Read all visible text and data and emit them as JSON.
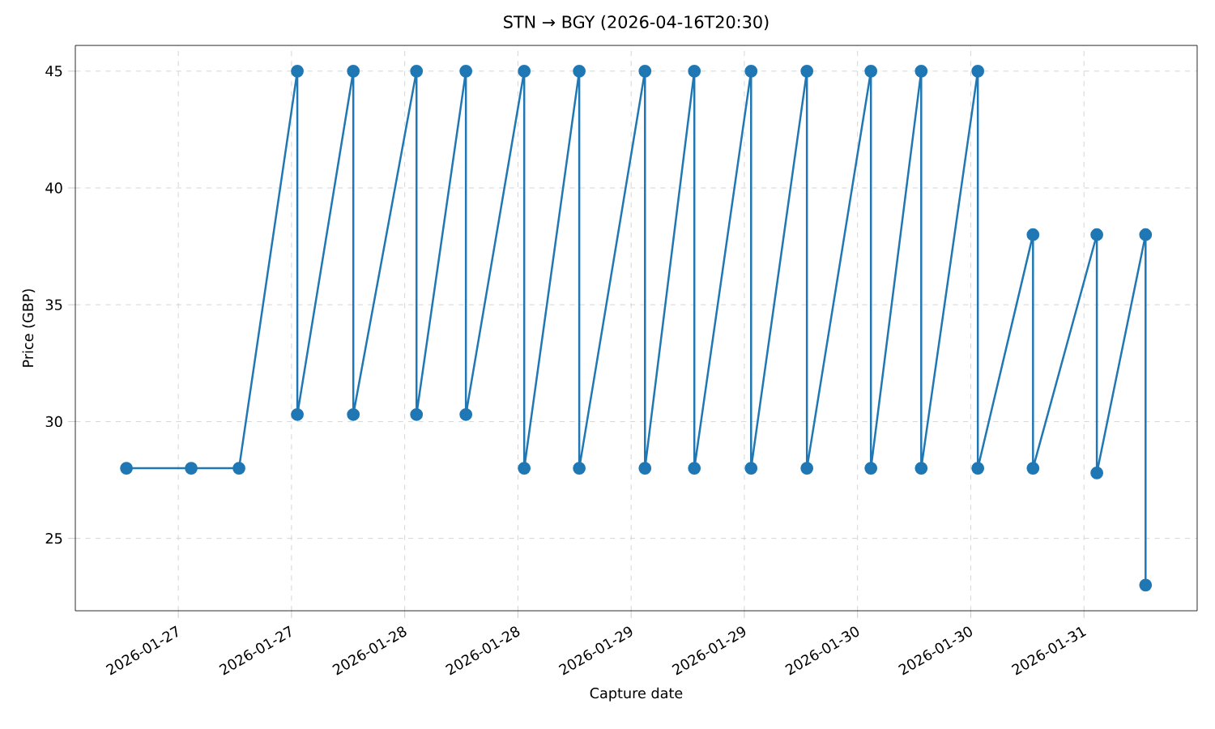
{
  "chart_data": {
    "type": "line",
    "title": "STN → BGY (2026-04-16T20:30)",
    "xlabel": "Capture date",
    "ylabel": "Price (GBP)",
    "x": [
      "2026-01-26T18:30",
      "2026-01-27T01:22",
      "2026-01-27T06:26",
      "2026-01-27T12:37",
      "2026-01-27T12:37",
      "2026-01-27T18:33",
      "2026-01-27T18:33",
      "2026-01-28T01:15",
      "2026-01-28T01:15",
      "2026-01-28T06:29",
      "2026-01-28T06:29",
      "2026-01-28T12:40",
      "2026-01-28T12:40",
      "2026-01-28T18:30",
      "2026-01-28T18:30",
      "2026-01-29T01:28",
      "2026-01-29T01:28",
      "2026-01-29T06:42",
      "2026-01-29T06:42",
      "2026-01-29T12:43",
      "2026-01-29T12:43",
      "2026-01-29T18:38",
      "2026-01-29T18:38",
      "2026-01-30T01:25",
      "2026-01-30T01:25",
      "2026-01-30T06:45",
      "2026-01-30T06:45",
      "2026-01-30T12:45",
      "2026-01-30T12:45",
      "2026-01-30T18:36",
      "2026-01-30T18:36",
      "2026-01-31T01:22",
      "2026-01-31T01:22",
      "2026-01-31T06:32",
      "2026-01-31T06:32"
    ],
    "series": [
      {
        "color": "#1f77b4",
        "values": [
          28,
          28,
          28,
          45,
          30.3,
          45,
          30.3,
          45,
          30.3,
          45,
          30.3,
          45,
          28,
          45,
          28,
          45,
          28,
          45,
          28,
          45,
          28,
          45,
          28,
          45,
          28,
          45,
          28,
          45,
          28,
          38,
          28,
          38,
          27.8,
          38,
          23
        ]
      }
    ],
    "xlim": [
      "2026-01-26T13:05",
      "2026-01-31T12:00"
    ],
    "xticks": [
      {
        "value": "2026-01-27T00:00",
        "label": "2026-01-27"
      },
      {
        "value": "2026-01-27T12:00",
        "label": "2026-01-27"
      },
      {
        "value": "2026-01-28T00:00",
        "label": "2026-01-28"
      },
      {
        "value": "2026-01-28T12:00",
        "label": "2026-01-28"
      },
      {
        "value": "2026-01-29T00:00",
        "label": "2026-01-29"
      },
      {
        "value": "2026-01-29T12:00",
        "label": "2026-01-29"
      },
      {
        "value": "2026-01-30T00:00",
        "label": "2026-01-30"
      },
      {
        "value": "2026-01-30T12:00",
        "label": "2026-01-30"
      },
      {
        "value": "2026-01-31T00:00",
        "label": "2026-01-31"
      }
    ],
    "ylim": [
      21.9,
      46.1
    ],
    "yticks": [
      25,
      30,
      35,
      40,
      45
    ],
    "grid": true,
    "marker": "circle",
    "line_style": "solid"
  }
}
